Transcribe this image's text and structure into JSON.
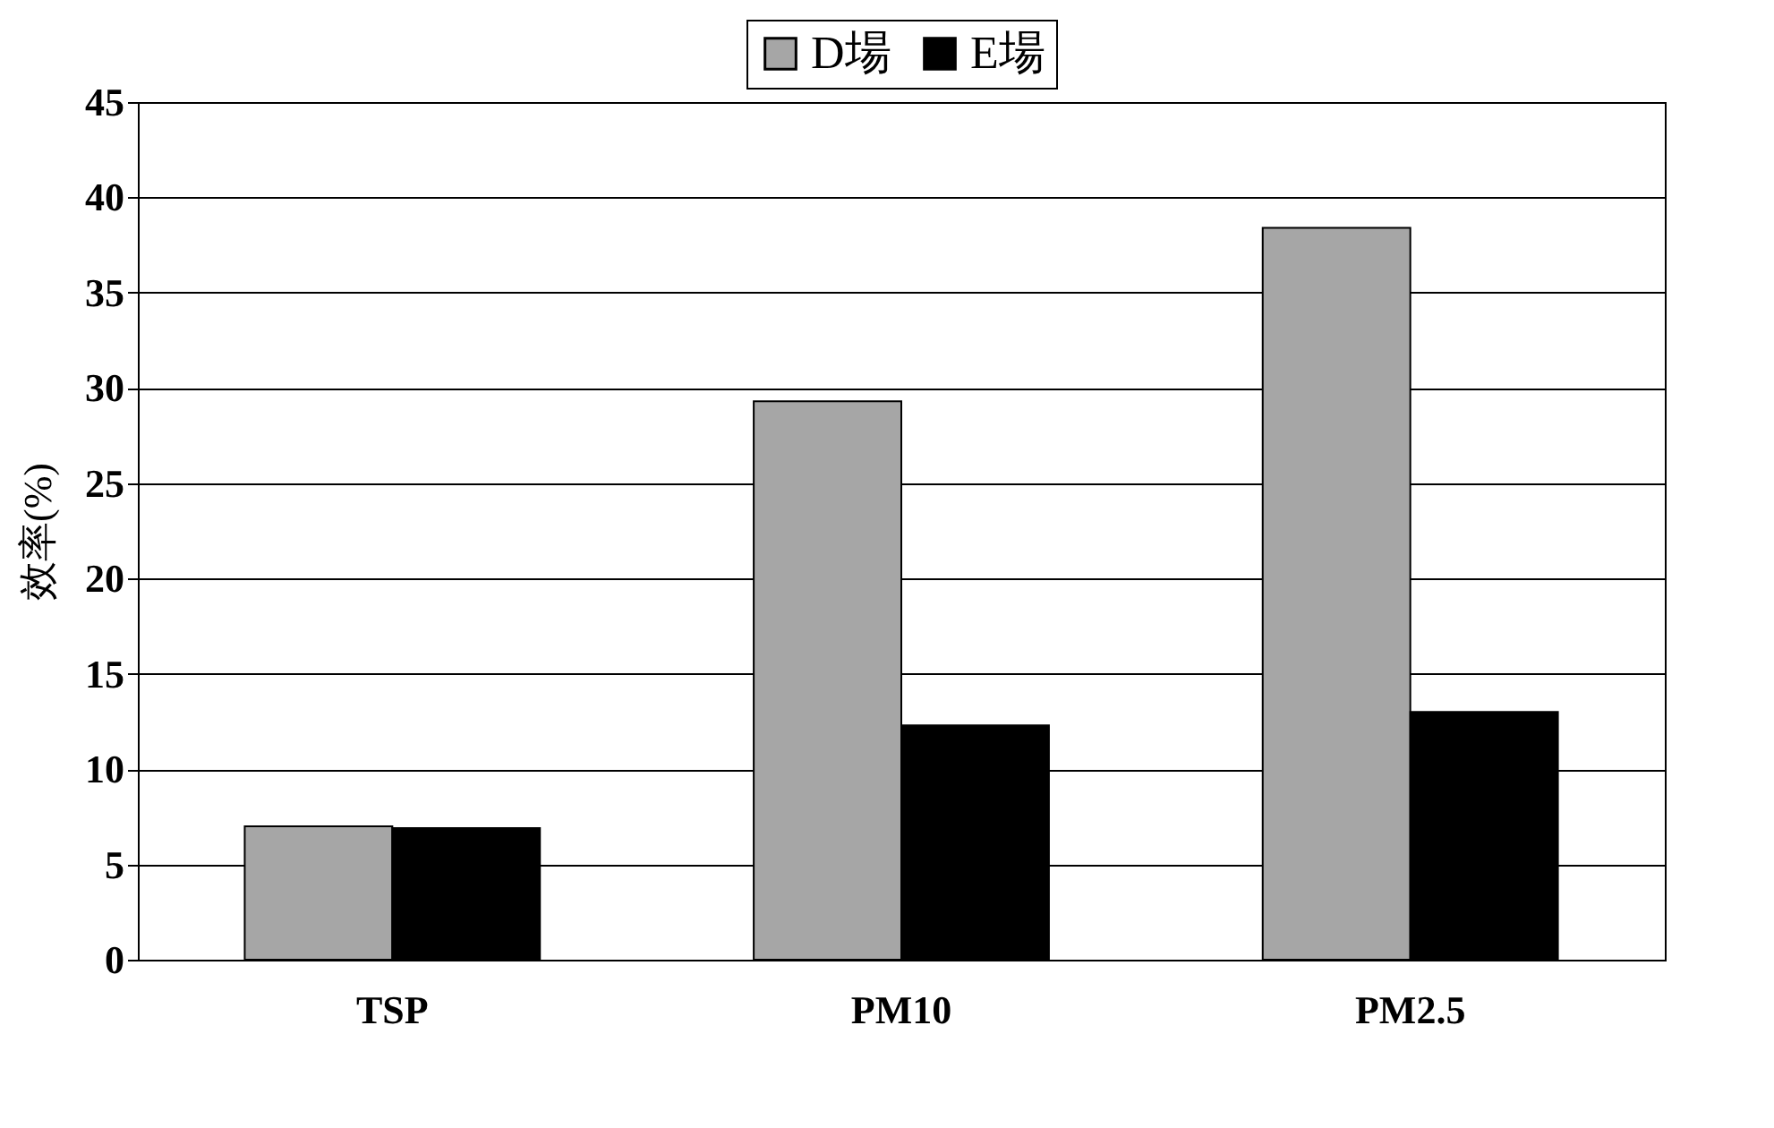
{
  "chart_data": {
    "type": "bar",
    "ylabel": "效率(%)",
    "categories": [
      "TSP",
      "PM10",
      "PM2.5"
    ],
    "series": [
      {
        "name": "D場",
        "color": "#a6a6a6",
        "values": [
          7.0,
          29.3,
          38.4
        ]
      },
      {
        "name": "E場",
        "color": "#000000",
        "values": [
          6.9,
          12.3,
          13.0
        ]
      }
    ],
    "ylim": [
      0,
      45
    ],
    "yticks": [
      0,
      5,
      10,
      15,
      20,
      25,
      30,
      35,
      40,
      45
    ],
    "grid": "y",
    "legend": "top"
  }
}
